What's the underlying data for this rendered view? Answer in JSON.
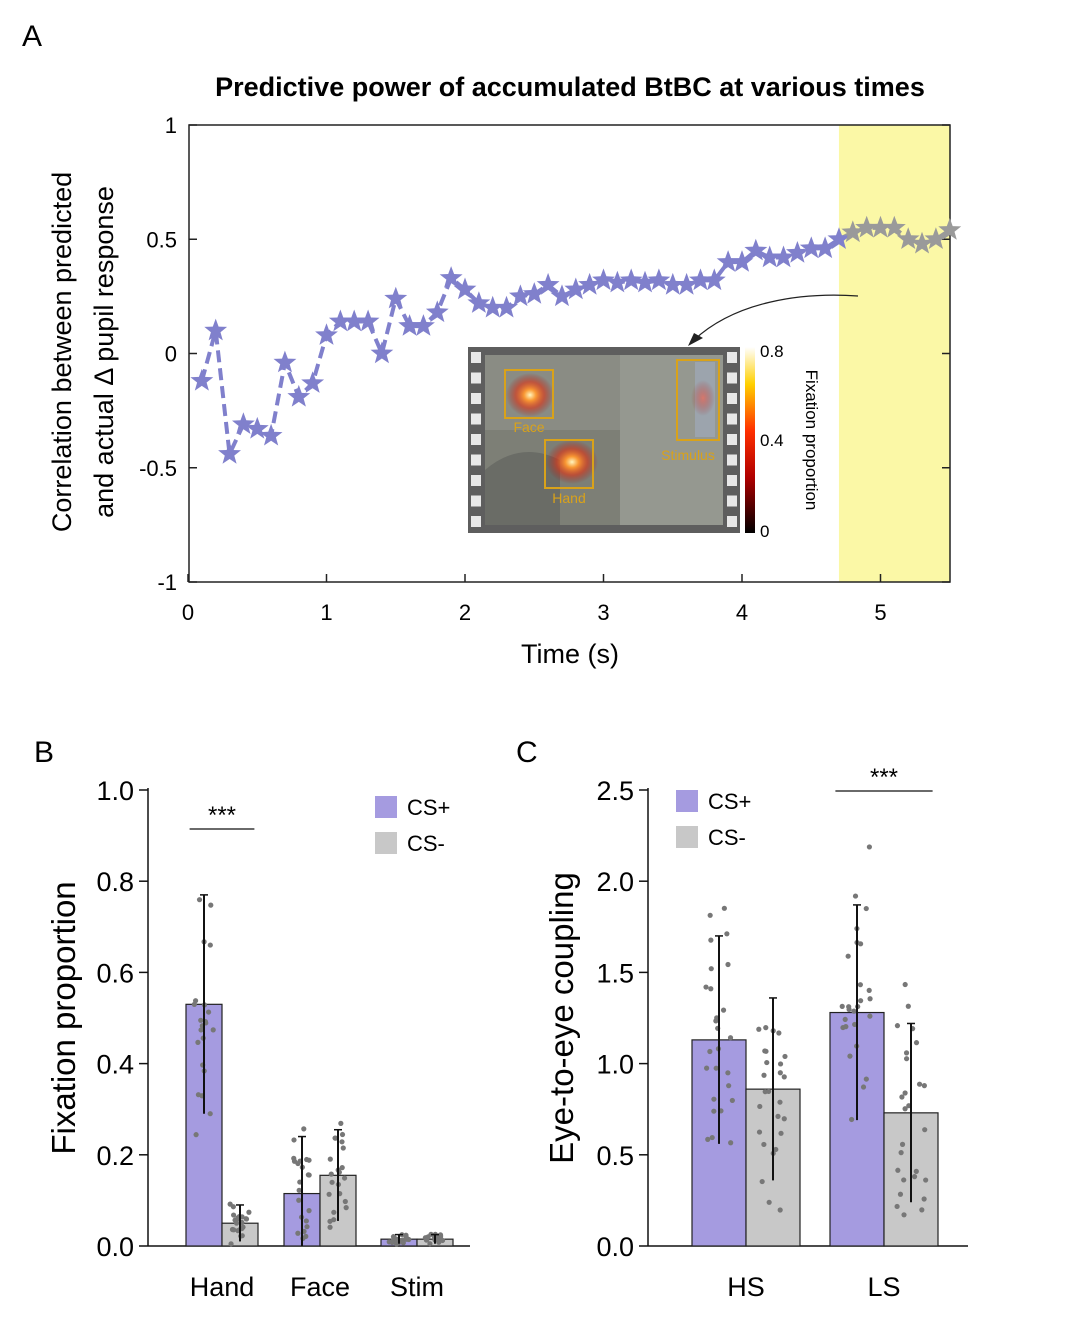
{
  "panels": {
    "a": "A",
    "b": "B",
    "c": "C"
  },
  "chart_data": [
    {
      "type": "line",
      "title": "Predictive power of accumulated BtBC at various times",
      "xlabel": "Time (s)",
      "ylabel_line1": "Correlation between predicted",
      "ylabel_line2": "and actual Δ pupil response",
      "xlim": [
        0,
        5.5
      ],
      "ylim": [
        -1,
        1
      ],
      "xticks": [
        "0",
        "1",
        "2",
        "3",
        "4",
        "5"
      ],
      "yticks": [
        "1",
        "0.5",
        "0",
        "-0.5",
        "-1"
      ],
      "highlight_range": [
        4.7,
        5.5
      ],
      "highlight_color": "#fbf8a6",
      "series_color": "#8080cc",
      "highlight_series_color": "#9a9a9a",
      "x": [
        0.1,
        0.2,
        0.3,
        0.4,
        0.5,
        0.6,
        0.7,
        0.8,
        0.9,
        1.0,
        1.1,
        1.2,
        1.3,
        1.4,
        1.5,
        1.6,
        1.7,
        1.8,
        1.9,
        2.0,
        2.1,
        2.2,
        2.3,
        2.4,
        2.5,
        2.6,
        2.7,
        2.8,
        2.9,
        3.0,
        3.1,
        3.2,
        3.3,
        3.4,
        3.5,
        3.6,
        3.7,
        3.8,
        3.9,
        4.0,
        4.1,
        4.2,
        4.3,
        4.4,
        4.5,
        4.6,
        4.7,
        4.8,
        4.9,
        5.0,
        5.1,
        5.2,
        5.3,
        5.4,
        5.5
      ],
      "y": [
        -0.12,
        0.1,
        -0.44,
        -0.31,
        -0.33,
        -0.36,
        -0.04,
        -0.19,
        -0.13,
        0.08,
        0.14,
        0.14,
        0.14,
        0.0,
        0.24,
        0.12,
        0.12,
        0.18,
        0.33,
        0.28,
        0.22,
        0.2,
        0.2,
        0.25,
        0.26,
        0.3,
        0.25,
        0.28,
        0.3,
        0.32,
        0.31,
        0.32,
        0.31,
        0.32,
        0.3,
        0.3,
        0.32,
        0.32,
        0.4,
        0.4,
        0.45,
        0.42,
        0.42,
        0.44,
        0.46,
        0.46,
        0.5,
        0.53,
        0.55,
        0.55,
        0.55,
        0.5,
        0.48,
        0.5,
        0.54
      ],
      "inset": {
        "roi_labels": [
          "Face",
          "Hand",
          "Stimulus"
        ],
        "colorbar_ticks": [
          "0.8",
          "0.4",
          "0"
        ],
        "colorbar_label": "Fixation proportion"
      }
    },
    {
      "type": "bar",
      "categories": [
        "Hand",
        "Face",
        "Stim"
      ],
      "ylabel": "Fixation proportion",
      "ylim": [
        0,
        1.0
      ],
      "yticks": [
        "0.0",
        "0.2",
        "0.4",
        "0.6",
        "0.8",
        "1.0"
      ],
      "series": [
        {
          "name": "CS+",
          "color": "#a59be0",
          "values": [
            0.53,
            0.115,
            0.015
          ],
          "err": [
            0.24,
            0.125,
            0.01
          ]
        },
        {
          "name": "CS-",
          "color": "#c8c8c8",
          "values": [
            0.05,
            0.155,
            0.015
          ],
          "err": [
            0.04,
            0.1,
            0.01
          ]
        }
      ],
      "significance": [
        {
          "category": "Hand",
          "label": "***"
        }
      ]
    },
    {
      "type": "bar",
      "categories": [
        "HS",
        "LS"
      ],
      "ylabel": "Eye-to-eye coupling",
      "ylim": [
        0,
        2.5
      ],
      "yticks": [
        "0.0",
        "0.5",
        "1.0",
        "1.5",
        "2.0",
        "2.5"
      ],
      "series": [
        {
          "name": "CS+",
          "color": "#a59be0",
          "values": [
            1.13,
            1.28
          ],
          "err": [
            0.57,
            0.59
          ]
        },
        {
          "name": "CS-",
          "color": "#c8c8c8",
          "values": [
            0.86,
            0.73
          ],
          "err": [
            0.5,
            0.49
          ]
        }
      ],
      "significance": [
        {
          "category": "LS",
          "label": "***"
        }
      ]
    }
  ]
}
